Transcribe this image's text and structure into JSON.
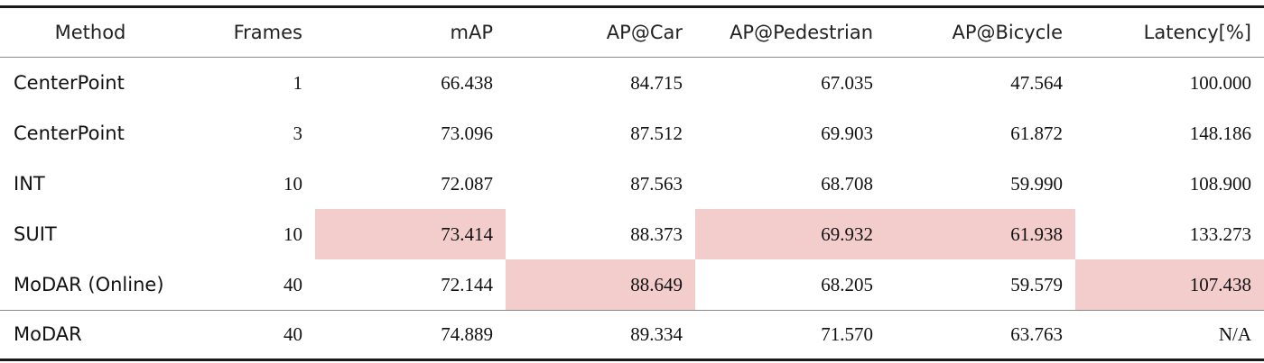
{
  "table": {
    "headers": [
      "Method",
      "Frames",
      "mAP",
      "AP@Car",
      "AP@Pedestrian",
      "AP@Bicycle",
      "Latency[%]"
    ],
    "rows": [
      {
        "method": "CenterPoint",
        "frames": "1",
        "map": "66.438",
        "car": "84.715",
        "ped": "67.035",
        "bic": "47.564",
        "lat": "100.000",
        "highlight": []
      },
      {
        "method": "CenterPoint",
        "frames": "3",
        "map": "73.096",
        "car": "87.512",
        "ped": "69.903",
        "bic": "61.872",
        "lat": "148.186",
        "highlight": []
      },
      {
        "method": "INT",
        "frames": "10",
        "map": "72.087",
        "car": "87.563",
        "ped": "68.708",
        "bic": "59.990",
        "lat": "108.900",
        "highlight": []
      },
      {
        "method": "SUIT",
        "frames": "10",
        "map": "73.414",
        "car": "88.373",
        "ped": "69.932",
        "bic": "61.938",
        "lat": "133.273",
        "highlight": [
          "map",
          "ped",
          "bic"
        ]
      },
      {
        "method": "MoDAR (Online)",
        "frames": "40",
        "map": "72.144",
        "car": "88.649",
        "ped": "68.205",
        "bic": "59.579",
        "lat": "107.438",
        "highlight": [
          "car",
          "lat"
        ]
      },
      {
        "method": "MoDAR",
        "frames": "40",
        "map": "74.889",
        "car": "89.334",
        "ped": "71.570",
        "bic": "63.763",
        "lat": "N/A",
        "highlight": []
      }
    ],
    "highlight_color": "#f3cccc"
  }
}
